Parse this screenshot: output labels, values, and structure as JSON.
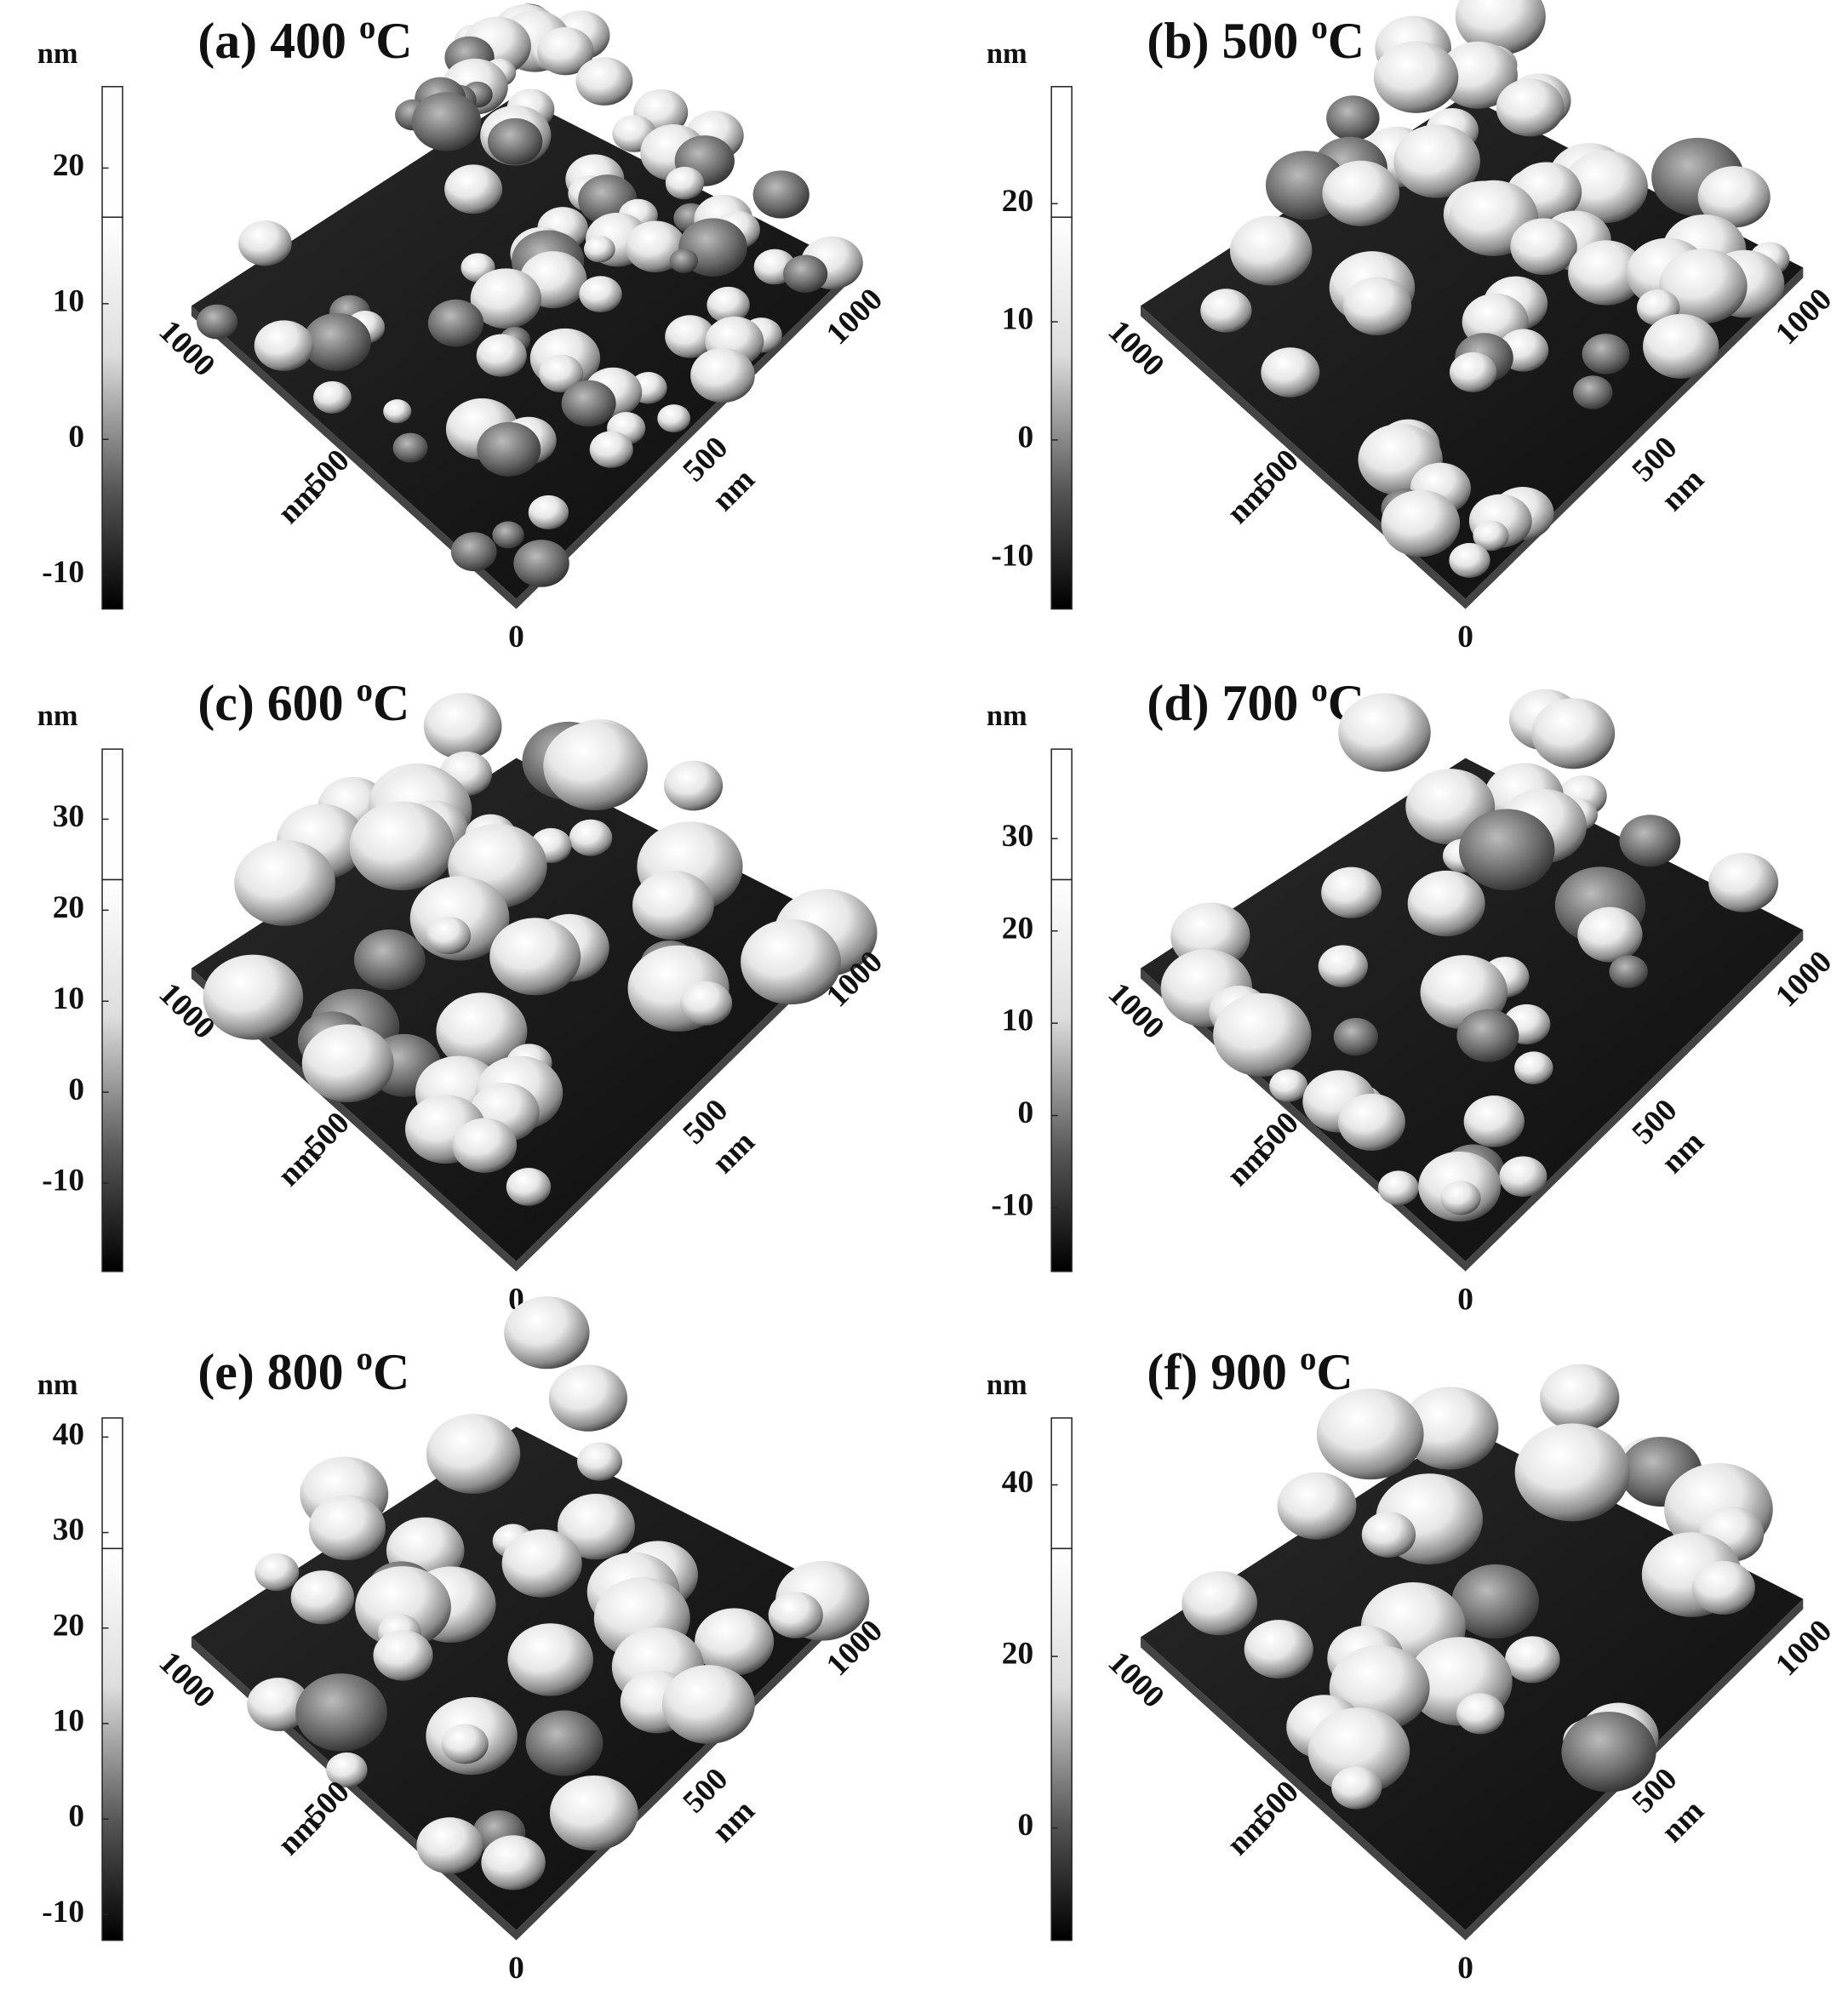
{
  "panels": [
    {
      "title": "(a) 400",
      "degree": "o",
      "unit": "C",
      "colorbar_unit": "nm",
      "ylim": [
        -12.5,
        26
      ],
      "yticks": [
        -10,
        0,
        10,
        20
      ],
      "axis_labels": {
        "left_max": "1000",
        "left_mid": "500",
        "left_unit": "nm",
        "origin": "0",
        "right_mid": "500",
        "right_unit": "nm",
        "right_max": "1000"
      }
    },
    {
      "title": "(b) 500",
      "degree": "o",
      "unit": "C",
      "colorbar_unit": "nm",
      "ylim": [
        -14.3,
        29.9
      ],
      "yticks": [
        -10,
        0,
        10,
        20
      ],
      "axis_labels": {
        "left_max": "1000",
        "left_mid": "500",
        "left_unit": "nm",
        "origin": "0",
        "right_mid": "500",
        "right_unit": "nm",
        "right_max": "1000"
      }
    },
    {
      "title": "(c) 600",
      "degree": "o",
      "unit": "C",
      "colorbar_unit": "nm",
      "ylim": [
        -19.7,
        37.7
      ],
      "yticks": [
        -10,
        0,
        10,
        20,
        30
      ],
      "axis_labels": {
        "left_max": "1000",
        "left_mid": "500",
        "left_unit": "nm",
        "origin": "0",
        "right_mid": "500",
        "right_unit": "nm",
        "right_max": "1000"
      }
    },
    {
      "title": "(d) 700",
      "degree": "o",
      "unit": "C",
      "colorbar_unit": "nm",
      "ylim": [
        -16.9,
        39.7
      ],
      "yticks": [
        -10,
        0,
        10,
        20,
        30
      ],
      "axis_labels": {
        "left_max": "1000",
        "left_mid": "500",
        "left_unit": "nm",
        "origin": "0",
        "right_mid": "500",
        "right_unit": "nm",
        "right_max": "1000"
      }
    },
    {
      "title": "(e) 800",
      "degree": "o",
      "unit": "C",
      "colorbar_unit": "nm",
      "ylim": [
        -12.7,
        42.0
      ],
      "yticks": [
        -10,
        0,
        10,
        20,
        30,
        40
      ],
      "axis_labels": {
        "left_max": "1000",
        "left_mid": "500",
        "left_unit": "nm",
        "origin": "0",
        "right_mid": "500",
        "right_unit": "nm",
        "right_max": "1000"
      }
    },
    {
      "title": "(f) 900",
      "degree": "o",
      "unit": "C",
      "colorbar_unit": "nm",
      "ylim": [
        -13.1,
        47.8
      ],
      "yticks": [
        0,
        20,
        40
      ],
      "axis_labels": {
        "left_max": "1000",
        "left_mid": "500",
        "left_unit": "nm",
        "origin": "0",
        "right_mid": "500",
        "right_unit": "nm",
        "right_max": "1000"
      }
    }
  ]
}
